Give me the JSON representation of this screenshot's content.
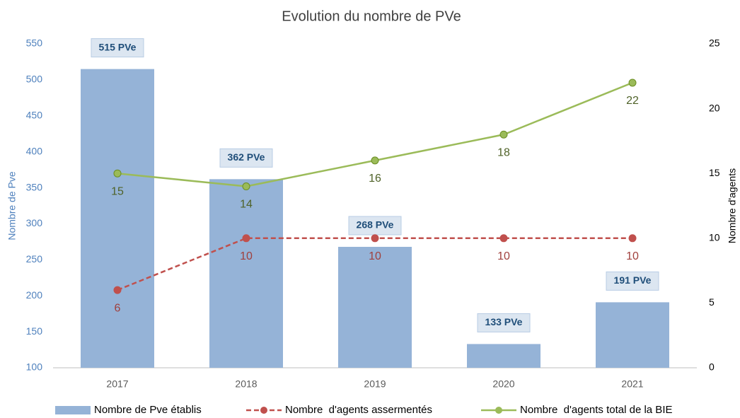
{
  "chart_data": {
    "type": "bar",
    "title": "Evolution du nombre de PVe",
    "categories": [
      "2017",
      "2018",
      "2019",
      "2020",
      "2021"
    ],
    "ylabel": "Nombre de Pve",
    "y2label": "Nombre d'agents",
    "ylim": [
      100,
      550
    ],
    "yticks": [
      100,
      150,
      200,
      250,
      300,
      350,
      400,
      450,
      500,
      550
    ],
    "y2lim": [
      0,
      25
    ],
    "y2ticks": [
      0,
      5,
      10,
      15,
      20,
      25
    ],
    "legend": "bottom",
    "series": [
      {
        "name": "Nombre de Pve établis",
        "type": "bar",
        "color": "#95b3d7",
        "values": [
          515,
          362,
          268,
          133,
          191
        ],
        "value_labels": [
          "515 PVe",
          "362 PVe",
          "268 PVe",
          "133 PVe",
          "191 PVe"
        ]
      },
      {
        "name": "Nombre  d'agents assermentés",
        "type": "line",
        "dashed": true,
        "axis": "y2",
        "color": "#c0504d",
        "values": [
          6,
          10,
          10,
          10,
          10
        ]
      },
      {
        "name": "Nombre  d'agents total de la BIE",
        "type": "line",
        "axis": "y2",
        "color": "#9bbb59",
        "values": [
          15,
          14,
          16,
          18,
          22
        ]
      }
    ]
  }
}
